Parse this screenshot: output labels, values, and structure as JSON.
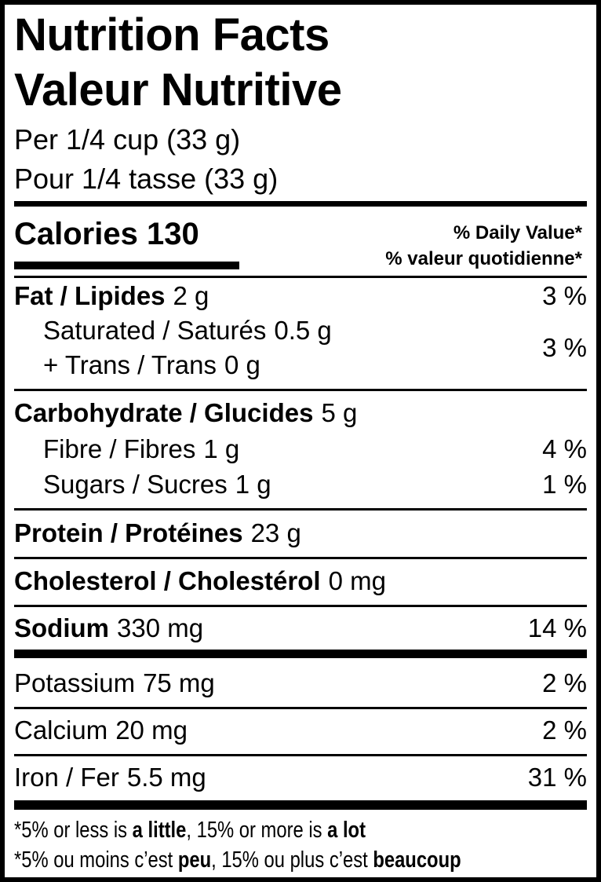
{
  "title": [
    "Nutrition Facts",
    "Valeur Nutritive"
  ],
  "serving": [
    "Per 1/4 cup (33 g)",
    "Pour 1/4 tasse (33 g)"
  ],
  "calories": {
    "label": "Calories",
    "value": "130"
  },
  "daily_value_header": [
    "% Daily Value*",
    "% valeur quotidienne*"
  ],
  "nutrients": [
    {
      "name": "Fat / Lipides",
      "amount": "2 g",
      "dv": "3 %"
    },
    {
      "name": "Saturated / Saturés",
      "amount": "0.5 g"
    },
    {
      "name": "+ Trans / Trans",
      "amount": "0 g",
      "dv": "3 %"
    },
    {
      "name": "Carbohydrate / Glucides",
      "amount": "5 g"
    },
    {
      "name": "Fibre / Fibres",
      "amount": "1 g",
      "dv": "4 %"
    },
    {
      "name": "Sugars / Sucres",
      "amount": "1 g",
      "dv": "1 %"
    },
    {
      "name": "Protein / Protéines",
      "amount": "23 g"
    },
    {
      "name": "Cholesterol / Cholestérol",
      "amount": "0 mg"
    },
    {
      "name": "Sodium",
      "amount": "330 mg",
      "dv": "14 %"
    },
    {
      "name": "Potassium",
      "amount": "75 mg",
      "dv": "2 %"
    },
    {
      "name": "Calcium",
      "amount": "20 mg",
      "dv": "2 %"
    },
    {
      "name": "Iron / Fer",
      "amount": "5.5 mg",
      "dv": "31 %"
    }
  ],
  "footnotes": [
    [
      "*5% or less is ",
      "a little",
      ", 15% or more is ",
      "a lot"
    ],
    [
      "*5% ou moins c’est ",
      "peu",
      ", 15% ou plus c’est ",
      "beaucoup"
    ]
  ]
}
